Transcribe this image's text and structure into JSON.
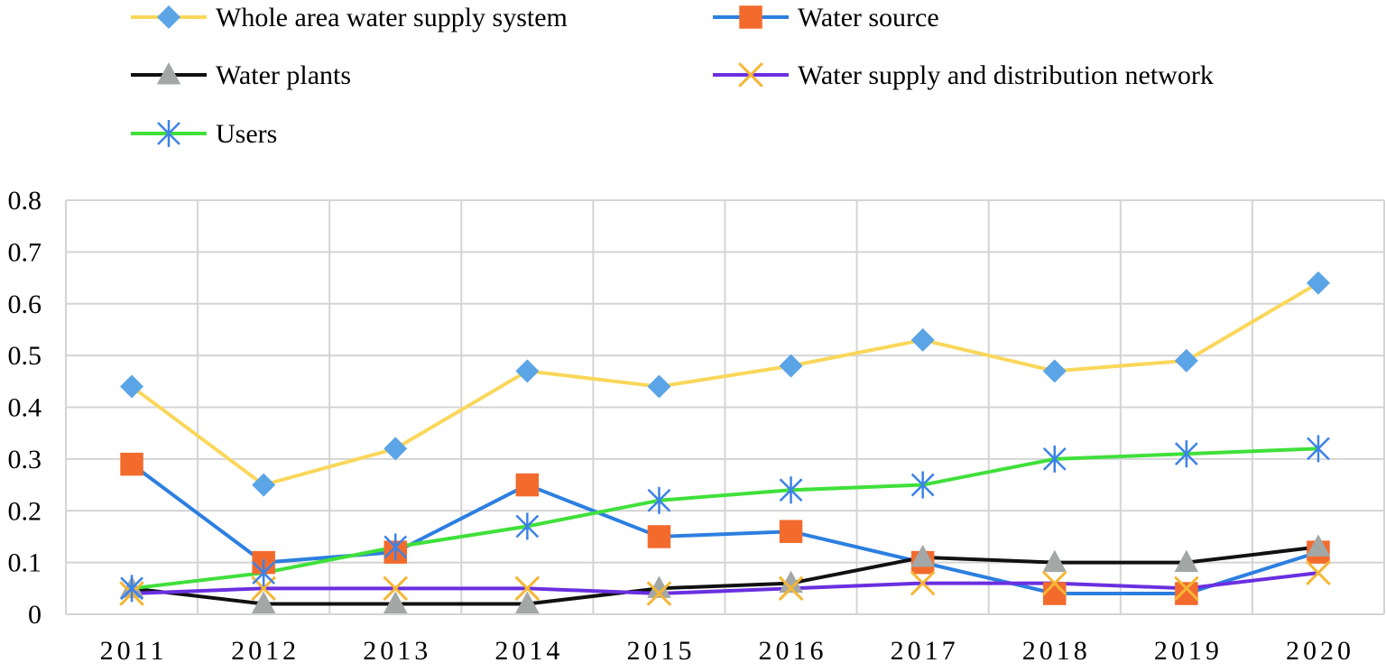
{
  "chart_data": {
    "type": "line",
    "title": "",
    "xlabel": "",
    "ylabel": "",
    "categories": [
      "2011",
      "2012",
      "2013",
      "2014",
      "2015",
      "2016",
      "2017",
      "2018",
      "2019",
      "2020"
    ],
    "ylim": [
      0,
      0.8
    ],
    "yticks": [
      0,
      0.1,
      0.2,
      0.3,
      0.4,
      0.5,
      0.6,
      0.7,
      0.8
    ],
    "ytick_labels": [
      "0",
      "0.1",
      "0.2",
      "0.3",
      "0.4",
      "0.5",
      "0.6",
      "0.7",
      "0.8"
    ],
    "grid": true,
    "legend_position": "top",
    "series": [
      {
        "name": "Whole area water supply system",
        "values": [
          0.44,
          0.25,
          0.32,
          0.47,
          0.44,
          0.48,
          0.53,
          0.47,
          0.49,
          0.64
        ],
        "line_color": "#FAD75A",
        "marker": "diamond",
        "marker_color": "#5BA4E6"
      },
      {
        "name": "Water source",
        "values": [
          0.29,
          0.1,
          0.12,
          0.25,
          0.15,
          0.16,
          0.1,
          0.04,
          0.04,
          0.12
        ],
        "line_color": "#2C7FE0",
        "marker": "square",
        "marker_color": "#F26B2D"
      },
      {
        "name": "Water plants",
        "values": [
          0.05,
          0.02,
          0.02,
          0.02,
          0.05,
          0.06,
          0.11,
          0.1,
          0.1,
          0.13
        ],
        "line_color": "#111111",
        "marker": "triangle",
        "marker_color": "#A3A8A6"
      },
      {
        "name": "Water supply and distribution network",
        "values": [
          0.04,
          0.05,
          0.05,
          0.05,
          0.04,
          0.05,
          0.06,
          0.06,
          0.05,
          0.08
        ],
        "line_color": "#6A2FE0",
        "marker": "x",
        "marker_color": "#F5B635"
      },
      {
        "name": "Users",
        "values": [
          0.05,
          0.08,
          0.13,
          0.17,
          0.22,
          0.24,
          0.25,
          0.3,
          0.31,
          0.32
        ],
        "line_color": "#3FE03A",
        "marker": "asterisk",
        "marker_color": "#3C82E8"
      }
    ]
  }
}
